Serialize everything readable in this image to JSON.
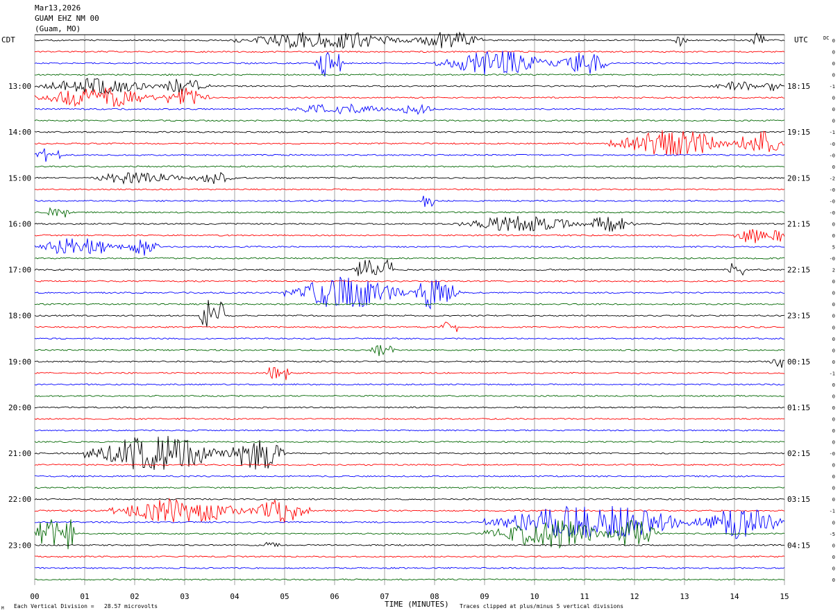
{
  "header": {
    "date": "Mar13,2026",
    "station": "GUAM EHZ NM 00",
    "location": "(Guam, MO)"
  },
  "left_zone": "CDT",
  "right_zone": "UTC",
  "dc_label": "DC",
  "footer": {
    "division_note": "Each Vertical Division =   28.57 microvolts",
    "clip_note": "Traces clipped at plus/minus 5 vertical divisions",
    "corner_mark": "M"
  },
  "chart_data": {
    "type": "line",
    "title": "",
    "xlabel": "TIME (MINUTES)",
    "ylabel": "",
    "xlim": [
      0,
      15
    ],
    "x_ticks": [
      "00",
      "01",
      "02",
      "03",
      "04",
      "05",
      "06",
      "07",
      "08",
      "09",
      "10",
      "11",
      "12",
      "13",
      "14",
      "15"
    ],
    "trace_count": 48,
    "trace_colors": [
      "#000000",
      "#ff0000",
      "#0000ff",
      "#006600"
    ],
    "left_time_labels": [
      {
        "trace": 4,
        "label": "13:00"
      },
      {
        "trace": 8,
        "label": "14:00"
      },
      {
        "trace": 12,
        "label": "15:00"
      },
      {
        "trace": 16,
        "label": "16:00"
      },
      {
        "trace": 20,
        "label": "17:00"
      },
      {
        "trace": 24,
        "label": "18:00"
      },
      {
        "trace": 28,
        "label": "19:00"
      },
      {
        "trace": 32,
        "label": "20:00"
      },
      {
        "trace": 36,
        "label": "21:00"
      },
      {
        "trace": 40,
        "label": "22:00"
      },
      {
        "trace": 44,
        "label": "23:00"
      }
    ],
    "right_time_labels": [
      {
        "trace": 4,
        "label": "18:15"
      },
      {
        "trace": 8,
        "label": "19:15"
      },
      {
        "trace": 12,
        "label": "20:15"
      },
      {
        "trace": 16,
        "label": "21:15"
      },
      {
        "trace": 20,
        "label": "22:15"
      },
      {
        "trace": 24,
        "label": "23:15"
      },
      {
        "trace": 28,
        "label": "00:15"
      },
      {
        "trace": 32,
        "label": "01:15"
      },
      {
        "trace": 36,
        "label": "02:15"
      },
      {
        "trace": 40,
        "label": "03:15"
      },
      {
        "trace": 44,
        "label": "04:15"
      }
    ],
    "dc_offsets": [
      "0",
      "0",
      "0",
      "0",
      "-1",
      "0",
      "0",
      "0",
      "-1",
      "-0",
      "-0",
      "0",
      "-2",
      "-0",
      "-0",
      "-0",
      "0",
      "0",
      "5",
      "-0",
      "2",
      "0",
      "0",
      "0",
      "0",
      "0",
      "0",
      "0",
      "0",
      "-1",
      "0",
      "0",
      "0",
      "0",
      "0",
      "0",
      "-0",
      "0",
      "0",
      "0",
      "0",
      "-1",
      "0",
      "-5",
      "0",
      "0",
      "0",
      "0"
    ],
    "events": [
      {
        "trace": 0,
        "start": 4.0,
        "end": 9.0,
        "amplitude": 13
      },
      {
        "trace": 0,
        "start": 12.8,
        "end": 13.1,
        "amplitude": 9
      },
      {
        "trace": 0,
        "start": 14.3,
        "end": 14.6,
        "amplitude": 16
      },
      {
        "trace": 2,
        "start": 5.6,
        "end": 6.2,
        "amplitude": 22
      },
      {
        "trace": 2,
        "start": 8.0,
        "end": 11.5,
        "amplitude": 18
      },
      {
        "trace": 4,
        "start": 13.5,
        "end": 15.0,
        "amplitude": 7
      },
      {
        "trace": 4,
        "start": 0.0,
        "end": 3.5,
        "amplitude": 12
      },
      {
        "trace": 5,
        "start": 0.0,
        "end": 3.5,
        "amplitude": 15
      },
      {
        "trace": 6,
        "start": 5.0,
        "end": 8.0,
        "amplitude": 8
      },
      {
        "trace": 9,
        "start": 11.5,
        "end": 15.0,
        "amplitude": 20
      },
      {
        "trace": 10,
        "start": 0.0,
        "end": 0.6,
        "amplitude": 10
      },
      {
        "trace": 12,
        "start": 1.0,
        "end": 4.0,
        "amplitude": 9
      },
      {
        "trace": 14,
        "start": 7.7,
        "end": 8.0,
        "amplitude": 9
      },
      {
        "trace": 15,
        "start": 0.2,
        "end": 0.7,
        "amplitude": 8
      },
      {
        "trace": 16,
        "start": 8.5,
        "end": 12.0,
        "amplitude": 12
      },
      {
        "trace": 17,
        "start": 14.0,
        "end": 15.0,
        "amplitude": 12
      },
      {
        "trace": 18,
        "start": 0.0,
        "end": 2.5,
        "amplitude": 14
      },
      {
        "trace": 20,
        "start": 6.3,
        "end": 7.2,
        "amplitude": 16
      },
      {
        "trace": 20,
        "start": 13.8,
        "end": 14.2,
        "amplitude": 10
      },
      {
        "trace": 22,
        "start": 5.0,
        "end": 8.5,
        "amplitude": 24
      },
      {
        "trace": 24,
        "start": 3.3,
        "end": 3.8,
        "amplitude": 26
      },
      {
        "trace": 25,
        "start": 8.1,
        "end": 8.5,
        "amplitude": 8
      },
      {
        "trace": 27,
        "start": 6.7,
        "end": 7.2,
        "amplitude": 10
      },
      {
        "trace": 28,
        "start": 14.7,
        "end": 15.0,
        "amplitude": 11
      },
      {
        "trace": 29,
        "start": 4.6,
        "end": 5.1,
        "amplitude": 11
      },
      {
        "trace": 36,
        "start": 1.0,
        "end": 5.0,
        "amplitude": 28
      },
      {
        "trace": 41,
        "start": 1.5,
        "end": 5.5,
        "amplitude": 18
      },
      {
        "trace": 42,
        "start": 9.0,
        "end": 15.0,
        "amplitude": 25
      },
      {
        "trace": 43,
        "start": 0.0,
        "end": 0.8,
        "amplitude": 30
      },
      {
        "trace": 43,
        "start": 9.0,
        "end": 12.5,
        "amplitude": 22
      },
      {
        "trace": 44,
        "start": 4.6,
        "end": 4.9,
        "amplitude": 9
      }
    ]
  }
}
